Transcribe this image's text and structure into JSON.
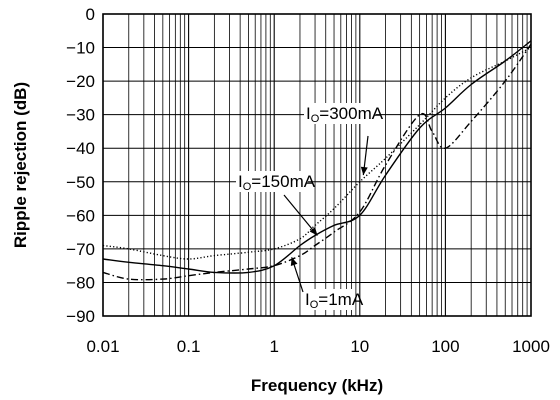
{
  "chart_data": {
    "type": "line",
    "title": "",
    "xlabel": "Frequency (kHz)",
    "ylabel": "Ripple rejection (dB)",
    "x_scale": "log",
    "xlim": [
      0.01,
      1000
    ],
    "ylim": [
      -90,
      0
    ],
    "grid": true,
    "x_ticks": [
      "0.01",
      "0.1",
      "1",
      "10",
      "100",
      "1000"
    ],
    "y_ticks": [
      "0",
      "−10",
      "−20",
      "−30",
      "−40",
      "−50",
      "−60",
      "−70",
      "−80",
      "−90"
    ],
    "series": [
      {
        "name": "IO=300mA",
        "label_main": "I",
        "label_sub": "O",
        "label_rest": "=300mA",
        "line_style": "dotted",
        "x": [
          0.01,
          0.02,
          0.05,
          0.1,
          0.2,
          0.5,
          1,
          2,
          3,
          5,
          10,
          20,
          50,
          100,
          200,
          500,
          1000
        ],
        "y": [
          -69,
          -70,
          -72,
          -73,
          -72,
          -71,
          -70,
          -67,
          -63,
          -58,
          -50,
          -43,
          -33,
          -25,
          -19,
          -14,
          -10
        ]
      },
      {
        "name": "IO=150mA",
        "label_main": "I",
        "label_sub": "O",
        "label_rest": "=150mA",
        "line_style": "solid",
        "x": [
          0.01,
          0.02,
          0.05,
          0.1,
          0.2,
          0.5,
          1,
          2,
          3,
          5,
          10,
          20,
          50,
          100,
          200,
          500,
          1000
        ],
        "y": [
          -73,
          -74,
          -75,
          -76,
          -77,
          -77,
          -75,
          -69,
          -66,
          -63,
          -60,
          -48,
          -34,
          -28,
          -21,
          -14,
          -8
        ]
      },
      {
        "name": "IO=1mA",
        "label_main": "I",
        "label_sub": "O",
        "label_rest": "=1mA",
        "line_style": "dash-dot",
        "x": [
          0.01,
          0.02,
          0.05,
          0.1,
          0.2,
          0.5,
          1,
          2,
          3,
          5,
          10,
          20,
          50,
          70,
          100,
          200,
          500,
          1000
        ],
        "y": [
          -77,
          -79,
          -79,
          -78,
          -77,
          -76,
          -75,
          -72,
          -69,
          -65,
          -59,
          -45,
          -30,
          -35,
          -40,
          -32,
          -20,
          -9
        ]
      }
    ]
  },
  "colors": {
    "line": "#000000",
    "grid": "#000000",
    "background": "#ffffff"
  }
}
